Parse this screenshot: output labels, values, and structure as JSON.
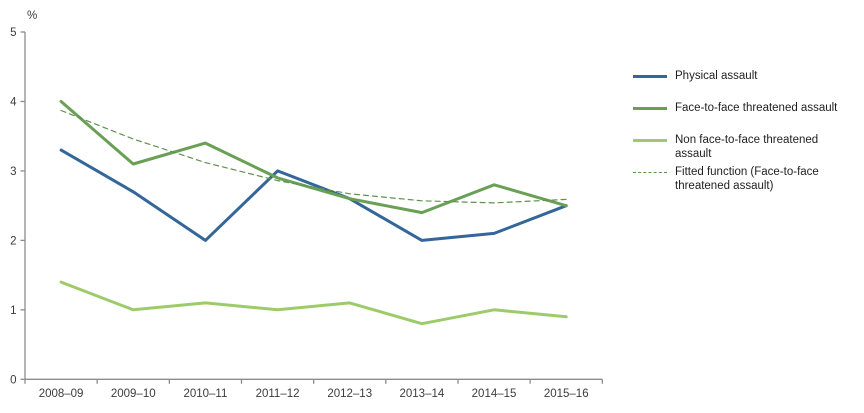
{
  "chart_data": {
    "type": "line",
    "title": "",
    "ylabel": "%",
    "xlabel": "",
    "ylim": [
      0,
      5
    ],
    "yticks": [
      0,
      1,
      2,
      3,
      4,
      5
    ],
    "grid": false,
    "legend_position": "right",
    "categories": [
      "2008–09",
      "2009–10",
      "2010–11",
      "2011–12",
      "2012–13",
      "2013–14",
      "2014–15",
      "2015–16"
    ],
    "series": [
      {
        "name": "Physical assault",
        "style": "solid",
        "color": "#336699",
        "values": [
          3.3,
          2.7,
          2.0,
          3.0,
          2.6,
          2.0,
          2.1,
          2.5
        ]
      },
      {
        "name": "Face-to-face threatened assault",
        "style": "solid",
        "color": "#69A055",
        "values": [
          4.0,
          3.1,
          3.4,
          2.9,
          2.6,
          2.4,
          2.8,
          2.5
        ]
      },
      {
        "name": "Non face-to-face threatened assault",
        "style": "solid",
        "color": "#9ECB6A",
        "values": [
          1.4,
          1.0,
          1.1,
          1.0,
          1.1,
          0.8,
          1.0,
          0.9
        ]
      },
      {
        "name": "Fitted function (Face-to-face threatened assault)",
        "style": "dashed",
        "color": "#5F9150",
        "values": [
          3.87,
          3.46,
          3.12,
          2.86,
          2.67,
          2.57,
          2.54,
          2.59
        ]
      }
    ],
    "axis_color": "#8c8c8c"
  }
}
